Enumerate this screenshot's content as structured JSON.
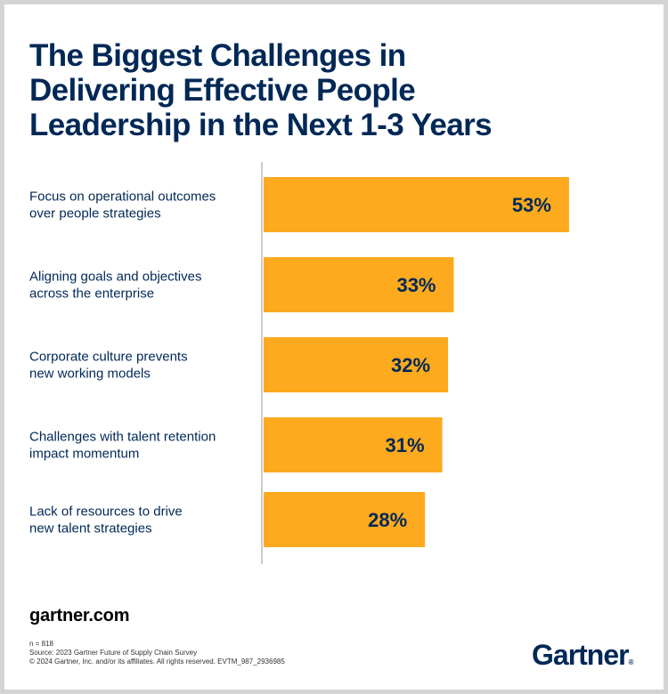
{
  "title_lines": [
    "The Biggest Challenges in",
    "Delivering Effective People",
    "Leadership in the Next 1-3 Years"
  ],
  "colors": {
    "bar": "#FDAA1E",
    "text": "#002856",
    "axis": "#cccccc",
    "frame": "#d4d4d4"
  },
  "chart_data": {
    "type": "bar",
    "orientation": "horizontal",
    "title": "The Biggest Challenges in Delivering Effective People Leadership in the Next 1-3 Years",
    "categories": [
      [
        "Focus on operational outcomes",
        "over people strategies"
      ],
      [
        "Aligning goals and objectives",
        "across the enterprise"
      ],
      [
        "Corporate culture prevents",
        "new working models"
      ],
      [
        "Challenges with talent retention",
        "impact momentum"
      ],
      [
        "Lack of resources to drive",
        "new talent strategies"
      ]
    ],
    "values": [
      53,
      33,
      32,
      31,
      28
    ],
    "value_labels": [
      "53%",
      "33%",
      "32%",
      "31%",
      "28%"
    ],
    "unit": "%",
    "xlabel": "",
    "ylabel": "",
    "xlim": [
      0,
      55
    ],
    "grid": false,
    "legend": "none"
  },
  "footer": {
    "site": "gartner.com",
    "notes": [
      "n = 818",
      "Source: 2023 Gartner Future of Supply Chain Survey",
      "© 2024 Gartner, Inc. and/or its affiliates. All rights reserved. EVTM_987_2936985"
    ],
    "logo_text": "Gartner",
    "logo_mark": "®"
  }
}
